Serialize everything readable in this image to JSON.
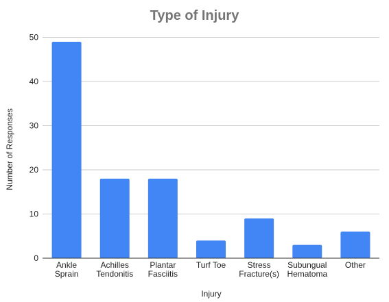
{
  "chart_data": {
    "type": "bar",
    "title": "Type of Injury",
    "xlabel": "Injury",
    "ylabel": "Number of Responses",
    "ylim": [
      0,
      50
    ],
    "yticks": [
      0,
      10,
      20,
      30,
      40,
      50
    ],
    "grid": true,
    "legend": "none",
    "bar_color": "#4285f4",
    "categories": [
      [
        "Ankle",
        "Sprain"
      ],
      [
        "Achilles",
        "Tendonitis"
      ],
      [
        "Plantar",
        "Fasciitis"
      ],
      [
        "Turf Toe"
      ],
      [
        "Stress",
        "Fracture(s)"
      ],
      [
        "Subungual",
        "Hematoma"
      ],
      [
        "Other"
      ]
    ],
    "values": [
      49,
      18,
      18,
      4,
      9,
      3,
      6
    ]
  }
}
